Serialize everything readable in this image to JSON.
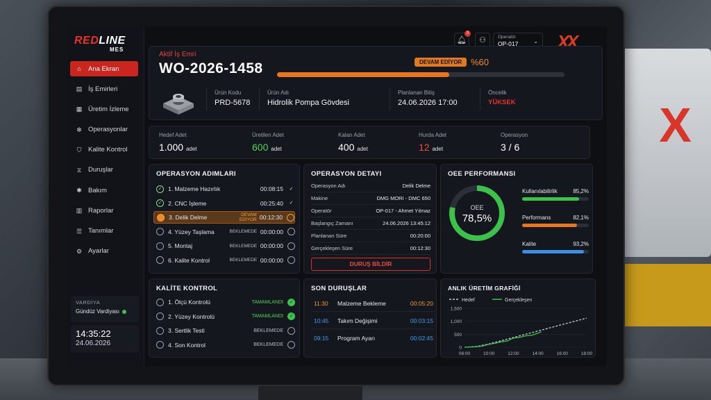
{
  "brand": {
    "red": "RED",
    "line": "LINE",
    "sub": "MES"
  },
  "nav": [
    {
      "label": "Ana Ekran",
      "icon": "home-icon",
      "glyph": "⌂"
    },
    {
      "label": "İş Emirleri",
      "icon": "clipboard-icon",
      "glyph": "▤"
    },
    {
      "label": "Üretim İzleme",
      "icon": "monitor-icon",
      "glyph": "▦"
    },
    {
      "label": "Operasyonlar",
      "icon": "gear-icon",
      "glyph": "✻"
    },
    {
      "label": "Kalite Kontrol",
      "icon": "shield-icon",
      "glyph": "⛉"
    },
    {
      "label": "Duruşlar",
      "icon": "hourglass-icon",
      "glyph": "⧖"
    },
    {
      "label": "Bakım",
      "icon": "wrench-icon",
      "glyph": "✱"
    },
    {
      "label": "Raporlar",
      "icon": "report-icon",
      "glyph": "▥"
    },
    {
      "label": "Tanımlar",
      "icon": "list-icon",
      "glyph": "☰"
    },
    {
      "label": "Ayarlar",
      "icon": "settings-icon",
      "glyph": "⚙"
    }
  ],
  "shift": {
    "title": "VARDİYA",
    "value": "Gündüz Vardiyası"
  },
  "clock": {
    "time": "14:35:22",
    "date": "24.06.2026"
  },
  "topbar": {
    "notif_count": "3",
    "operator_label": "Operatör",
    "operator_value": "OP-017"
  },
  "work_order": {
    "label": "Aktif İş Emri",
    "number": "WO-2026-1458",
    "status": "DEVAM EDİYOR",
    "percent_text": "%60",
    "progress": 0.6,
    "product_code_label": "Ürün Kodu",
    "product_code": "PRD-5678",
    "product_name_label": "Ürün Adı",
    "product_name": "Hidrolik Pompa Gövdesi",
    "planned_end_label": "Planlanan Bitiş",
    "planned_end": "24.06.2026 17:00",
    "priority_label": "Öncelik",
    "priority": "YÜKSEK"
  },
  "stats": [
    {
      "label": "Hedef Adet",
      "value": "1.000",
      "unit": "adet",
      "color": "#ffffff"
    },
    {
      "label": "Üretilen Adet",
      "value": "600",
      "unit": "adet",
      "color": "#4ed45a"
    },
    {
      "label": "Kalan Adet",
      "value": "400",
      "unit": "adet",
      "color": "#ffffff"
    },
    {
      "label": "Hurda Adet",
      "value": "12",
      "unit": "adet",
      "color": "#f04a3e"
    },
    {
      "label": "Operasyon",
      "value": "3 / 6",
      "unit": "",
      "color": "#ffffff"
    }
  ],
  "operations": {
    "title": "OPERASYON ADIMLARI",
    "items": [
      {
        "name": "1. Malzeme Hazırlık",
        "state": "",
        "time": "00:08:15",
        "status": "done"
      },
      {
        "name": "2. CNC İşleme",
        "state": "",
        "time": "00:25:40",
        "status": "done"
      },
      {
        "name": "3. Delik Delme",
        "state": "DEVAM EDİYOR",
        "time": "00:12:30",
        "status": "run"
      },
      {
        "name": "4. Yüzey Taşlama",
        "state": "BEKLEMEDE",
        "time": "00:00:00",
        "status": "pend"
      },
      {
        "name": "5. Montaj",
        "state": "BEKLEMEDE",
        "time": "00:00:00",
        "status": "pend"
      },
      {
        "name": "6. Kalite Kontrol",
        "state": "BEKLEMEDE",
        "time": "00:00:00",
        "status": "pend"
      }
    ]
  },
  "detail": {
    "title": "OPERASYON DETAYI",
    "rows": [
      {
        "k": "Operasyon Adı",
        "v": "Delik Delme"
      },
      {
        "k": "Makine",
        "v": "DMG MORI - DMC 650"
      },
      {
        "k": "Operatör",
        "v": "OP-017 - Ahmet Yılmaz"
      },
      {
        "k": "Başlangıç Zamanı",
        "v": "24.06.2026 13:45:12"
      },
      {
        "k": "Planlanan Süre",
        "v": "00:20:00"
      },
      {
        "k": "Gerçekleşen Süre",
        "v": "00:12:30"
      }
    ],
    "button": "DURUŞ BİLDİR"
  },
  "oee": {
    "title": "OEE PERFORMANSI",
    "center_label": "OEE",
    "center_value": "78,5%",
    "value": 78.5,
    "kpis": [
      {
        "label": "Kullanılabilirlik",
        "text": "85,2%",
        "value": 85.2,
        "color": "#3cc24a"
      },
      {
        "label": "Performans",
        "text": "82,1%",
        "value": 82.1,
        "color": "#e8761e"
      },
      {
        "label": "Kalite",
        "text": "93,2%",
        "value": 93.2,
        "color": "#3b8fe8"
      }
    ]
  },
  "quality": {
    "title": "KALİTE KONTROL",
    "items": [
      {
        "name": "1. Ölçü Kontrolü",
        "state": "TAMAMLANDI",
        "status": "done"
      },
      {
        "name": "2. Yüzey Kontrolü",
        "state": "TAMAMLANDI",
        "status": "done"
      },
      {
        "name": "3. Sertlik Testi",
        "state": "BEKLEMEDE",
        "status": "pend"
      },
      {
        "name": "4. Son Kontrol",
        "state": "BEKLEMEDE",
        "status": "pend"
      }
    ]
  },
  "downtime": {
    "title": "SON DURUŞLAR",
    "items": [
      {
        "time": "11:30",
        "reason": "Malzeme Bekleme",
        "dur": "00:05:20",
        "color": "orange"
      },
      {
        "time": "10:45",
        "reason": "Takım Değişimi",
        "dur": "00:03:15",
        "color": "blue"
      },
      {
        "time": "09:15",
        "reason": "Program Ayarı",
        "dur": "00:02:45",
        "color": "blue"
      }
    ]
  },
  "chart_data": {
    "type": "line",
    "title": "ANLIK ÜRETİM GRAFİĞİ",
    "x": [
      "08:00",
      "10:00",
      "12:00",
      "14:00",
      "16:00",
      "18:00"
    ],
    "yticks": [
      "0",
      "500",
      "1,000",
      "1,500"
    ],
    "ylim": [
      0,
      1500
    ],
    "legend_placement": "top",
    "series": [
      {
        "name": "Hedef",
        "color": "#c8ccd4",
        "dashed": true,
        "points": [
          [
            8,
            0
          ],
          [
            9,
            30
          ],
          [
            10,
            125
          ],
          [
            11,
            250
          ],
          [
            12,
            375
          ],
          [
            13,
            500
          ],
          [
            14,
            625
          ],
          [
            15,
            750
          ],
          [
            16,
            875
          ],
          [
            17,
            1000
          ],
          [
            18,
            1125
          ]
        ]
      },
      {
        "name": "Gerçekleşen",
        "color": "#3cc24a",
        "dashed": false,
        "points": [
          [
            8,
            0
          ],
          [
            9,
            20
          ],
          [
            9.5,
            50
          ],
          [
            10,
            110
          ],
          [
            10.5,
            150
          ],
          [
            11,
            210
          ],
          [
            11.5,
            240
          ],
          [
            12,
            350
          ],
          [
            12.5,
            380
          ],
          [
            13,
            440
          ],
          [
            13.5,
            460
          ],
          [
            14,
            540
          ],
          [
            14.3,
            600
          ]
        ]
      }
    ]
  }
}
